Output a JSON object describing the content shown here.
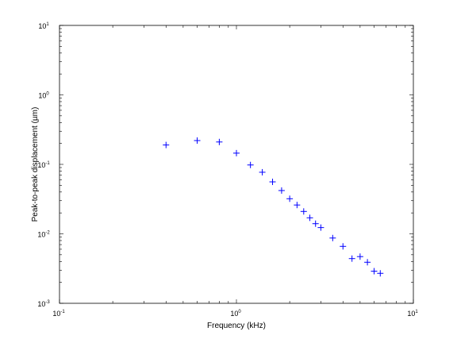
{
  "chart_data": {
    "type": "scatter",
    "xlabel": "Frequency (kHz)",
    "ylabel": "Peak-to-peak displacement (µm)",
    "xscale": "log",
    "yscale": "log",
    "xlim": [
      0.1,
      10
    ],
    "ylim": [
      0.001,
      10
    ],
    "x_ticks": [
      {
        "base": "10",
        "exp": "-1"
      },
      {
        "base": "10",
        "exp": "0"
      },
      {
        "base": "10",
        "exp": "1"
      }
    ],
    "y_ticks": [
      {
        "base": "10",
        "exp": "-3"
      },
      {
        "base": "10",
        "exp": "-2"
      },
      {
        "base": "10",
        "exp": "-1"
      },
      {
        "base": "10",
        "exp": "0"
      },
      {
        "base": "10",
        "exp": "1"
      }
    ],
    "grid": false,
    "marker": "+",
    "marker_color": "#0000ff",
    "series": [
      {
        "x": [
          0.4,
          0.6,
          0.8,
          1.0,
          1.2,
          1.4,
          1.6,
          1.8,
          2.0,
          2.2,
          2.4,
          2.6,
          2.8,
          3.0,
          3.5,
          4.0,
          4.5,
          5.0,
          5.5,
          6.0,
          6.5
        ],
        "y": [
          0.19,
          0.22,
          0.21,
          0.145,
          0.098,
          0.077,
          0.056,
          0.042,
          0.032,
          0.026,
          0.021,
          0.017,
          0.014,
          0.0123,
          0.0087,
          0.0066,
          0.0044,
          0.0047,
          0.0039,
          0.0029,
          0.0027
        ]
      }
    ]
  }
}
